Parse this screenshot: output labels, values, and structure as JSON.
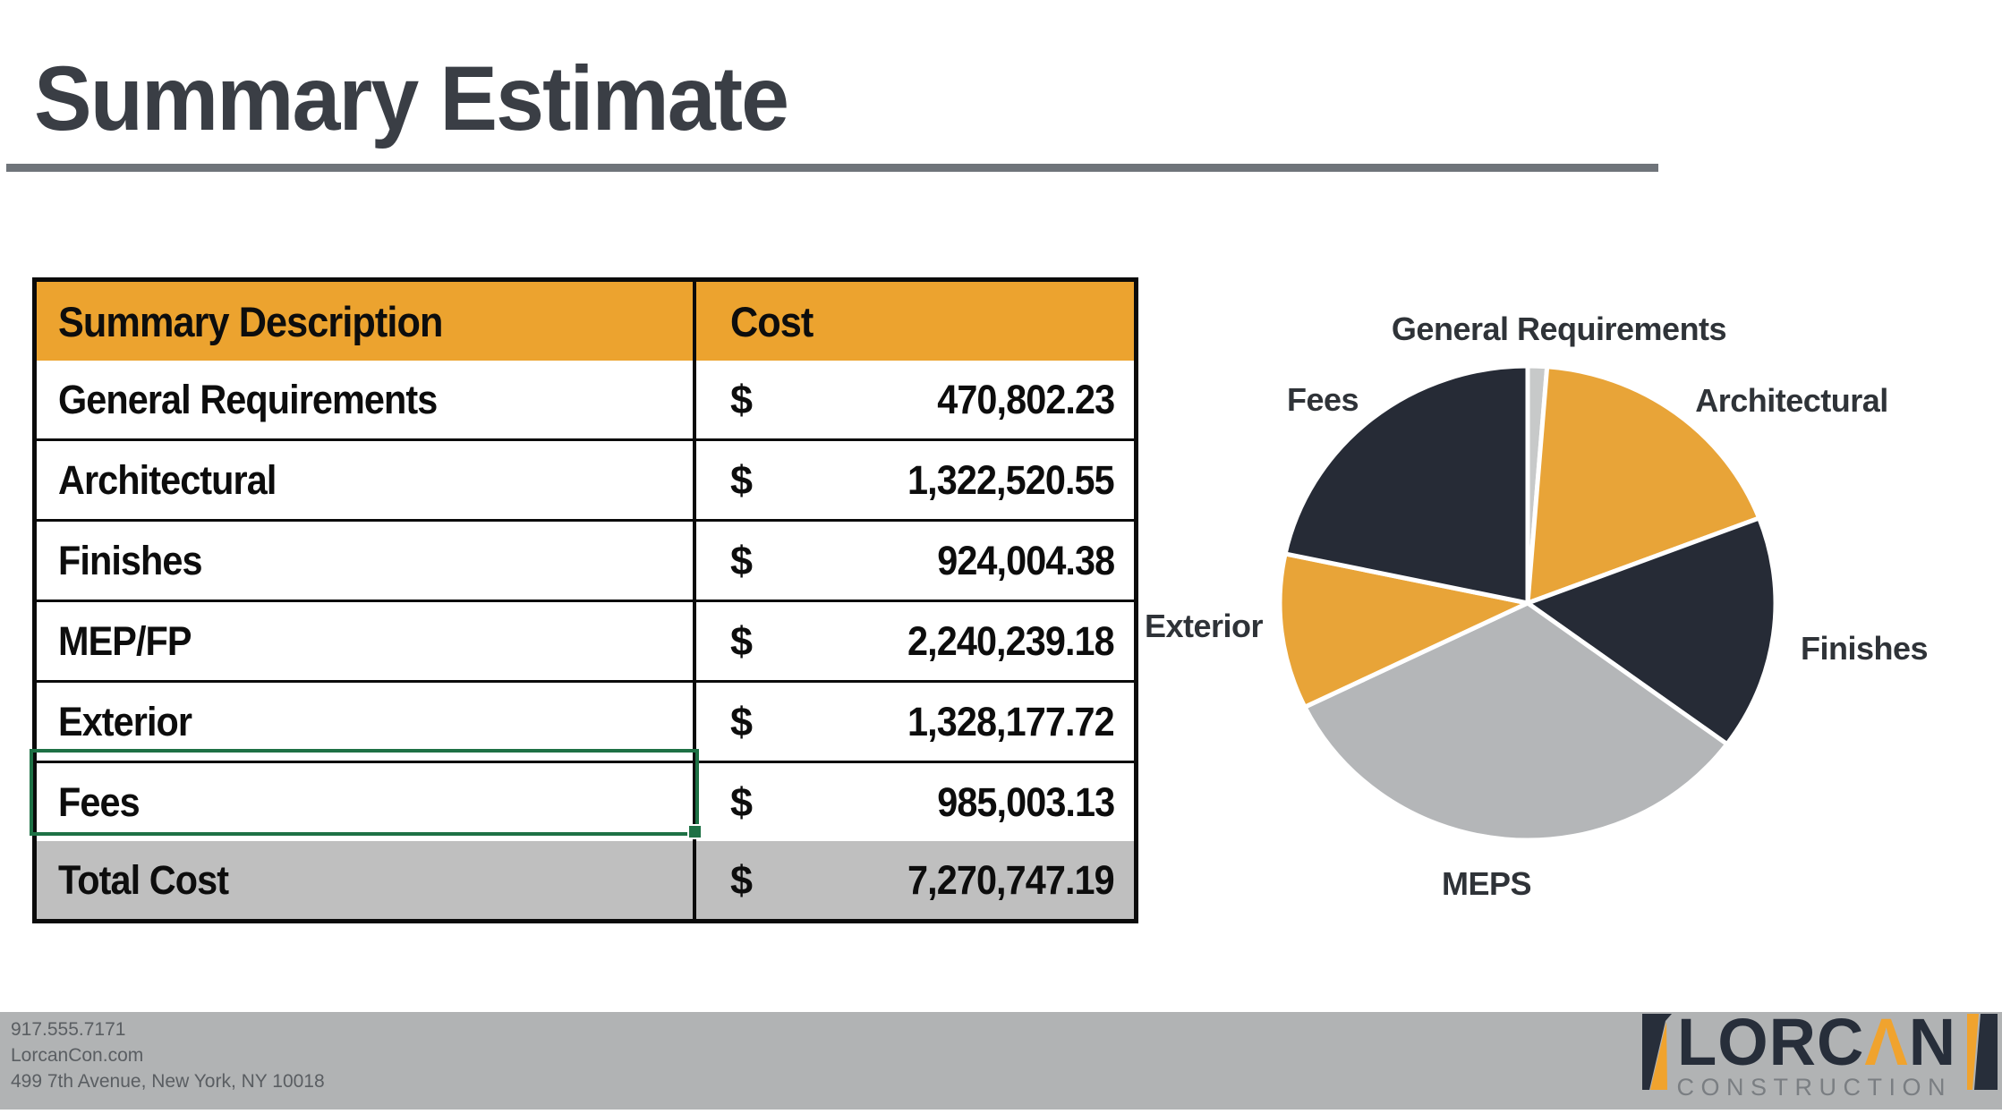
{
  "title": {
    "text": "Summary Estimate"
  },
  "table": {
    "columns": [
      "Summary Description",
      "Cost"
    ],
    "rows": [
      {
        "label": "General Requirements",
        "currency": "$",
        "amount": "470,802.23"
      },
      {
        "label": "Architectural",
        "currency": "$",
        "amount": "1,322,520.55"
      },
      {
        "label": "Finishes",
        "currency": "$",
        "amount": "924,004.38"
      },
      {
        "label": "MEP/FP",
        "currency": "$",
        "amount": "2,240,239.18"
      },
      {
        "label": "Exterior",
        "currency": "$",
        "amount": "1,328,177.72"
      },
      {
        "label": "Fees",
        "currency": "$",
        "amount": "985,003.13",
        "selected": true
      }
    ],
    "total": {
      "label": "Total Cost",
      "currency": "$",
      "amount": "7,270,747.19"
    },
    "header_bg": "#ECA32F",
    "total_bg": "#BFBFBF",
    "selection_color": "#1E7145"
  },
  "chart_data": {
    "type": "pie",
    "title": "",
    "labels": [
      "General Requirements",
      "Architectural",
      "Finishes",
      "MEPS",
      "Exterior",
      "Fees"
    ],
    "values": [
      470802.23,
      1322520.55,
      924004.38,
      2240239.18,
      1328177.72,
      985003.13
    ],
    "legend_position": "none",
    "drawn_segments": [
      {
        "label": "General Requirements",
        "color": "#C7C9C9",
        "start_deg": 0,
        "end_deg": 4.5,
        "drawn_pct": 1.3
      },
      {
        "label": "Architectural",
        "color": "#E8A438",
        "start_deg": 4.5,
        "end_deg": 69,
        "drawn_pct": 17.9
      },
      {
        "label": "Finishes",
        "color": "#262B36",
        "start_deg": 69,
        "end_deg": 126.5,
        "drawn_pct": 16.0
      },
      {
        "label": "MEPS",
        "color": "#B4B6B8",
        "start_deg": 126.5,
        "end_deg": 244,
        "drawn_pct": 32.6
      },
      {
        "label": "Exterior",
        "color": "#E8A438",
        "start_deg": 244,
        "end_deg": 282,
        "drawn_pct": 10.6
      },
      {
        "label": "Fees",
        "color": "#262B36",
        "start_deg": 282,
        "end_deg": 360,
        "drawn_pct": 21.7
      }
    ]
  },
  "footer": {
    "lines": [
      "917.555.7171",
      "LorcanCon.com",
      "499 7th Avenue, New York, NY 10018"
    ]
  },
  "logo": {
    "brand_pre": "LORC",
    "brand_a": "Λ",
    "brand_post": "N",
    "subtitle": "CONSTRUCTION",
    "orange": "#F0A32E",
    "dark": "#272E3A"
  }
}
